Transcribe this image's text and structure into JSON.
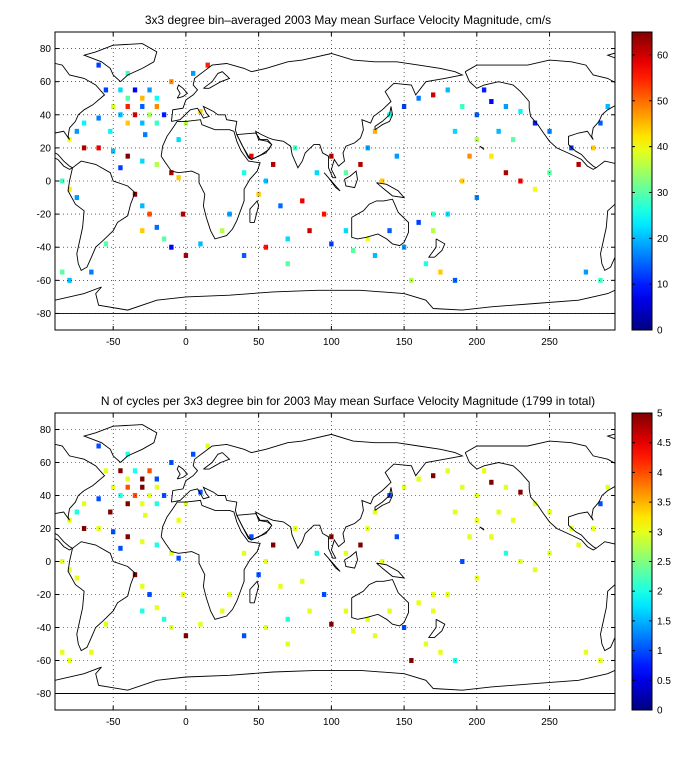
{
  "chart_data": [
    {
      "type": "heatmap",
      "title": "3x3 degree bin–averaged 2003 May mean Surface Velocity Magnitude, cm/s",
      "xlabel": "",
      "ylabel": "",
      "xlim": [
        -90,
        295
      ],
      "ylim": [
        -90,
        90
      ],
      "x_ticks": [
        -50,
        0,
        50,
        100,
        150,
        200,
        250
      ],
      "y_ticks": [
        80,
        60,
        40,
        20,
        0,
        -20,
        -40,
        -60,
        -80
      ],
      "grid": true,
      "colorbar": {
        "min": 0,
        "max": 65,
        "ticks": [
          0,
          10,
          20,
          30,
          40,
          50,
          60
        ]
      },
      "bin_size_deg": 3,
      "cells": [
        [
          -55,
          55,
          12
        ],
        [
          -45,
          55,
          22
        ],
        [
          -35,
          55,
          8
        ],
        [
          -25,
          55,
          18
        ],
        [
          -40,
          50,
          30
        ],
        [
          -30,
          50,
          45
        ],
        [
          -20,
          50,
          25
        ],
        [
          -50,
          45,
          38
        ],
        [
          -40,
          45,
          55
        ],
        [
          -30,
          45,
          14
        ],
        [
          -20,
          45,
          48
        ],
        [
          -45,
          40,
          20
        ],
        [
          -35,
          40,
          60
        ],
        [
          -25,
          40,
          35
        ],
        [
          -15,
          40,
          10
        ],
        [
          -40,
          35,
          44
        ],
        [
          -30,
          35,
          20
        ],
        [
          -20,
          35,
          28
        ],
        [
          -60,
          38,
          16
        ],
        [
          -70,
          35,
          24
        ],
        [
          -75,
          30,
          18
        ],
        [
          -80,
          25,
          40
        ],
        [
          -70,
          20,
          62
        ],
        [
          -60,
          20,
          58
        ],
        [
          -50,
          18,
          20
        ],
        [
          -40,
          15,
          65
        ],
        [
          -30,
          12,
          22
        ],
        [
          -20,
          10,
          36
        ],
        [
          -10,
          5,
          62
        ],
        [
          -5,
          2,
          44
        ],
        [
          -85,
          0,
          28
        ],
        [
          -80,
          -5,
          42
        ],
        [
          -75,
          -10,
          18
        ],
        [
          -35,
          -8,
          64
        ],
        [
          -30,
          -15,
          20
        ],
        [
          -25,
          -20,
          52
        ],
        [
          -20,
          -28,
          15
        ],
        [
          -15,
          -35,
          30
        ],
        [
          -10,
          -40,
          8
        ],
        [
          0,
          -45,
          62
        ],
        [
          10,
          -38,
          20
        ],
        [
          25,
          -30,
          36
        ],
        [
          40,
          -45,
          14
        ],
        [
          55,
          -40,
          56
        ],
        [
          70,
          -35,
          22
        ],
        [
          85,
          -30,
          60
        ],
        [
          100,
          -38,
          12
        ],
        [
          115,
          -42,
          30
        ],
        [
          130,
          -45,
          20
        ],
        [
          150,
          -40,
          18
        ],
        [
          165,
          -50,
          26
        ],
        [
          175,
          -55,
          44
        ],
        [
          185,
          -60,
          14
        ],
        [
          -85,
          -55,
          30
        ],
        [
          -80,
          -60,
          20
        ],
        [
          -65,
          -55,
          16
        ],
        [
          60,
          10,
          62
        ],
        [
          55,
          0,
          20
        ],
        [
          50,
          -8,
          44
        ],
        [
          65,
          -15,
          15
        ],
        [
          80,
          -12,
          58
        ],
        [
          90,
          5,
          22
        ],
        [
          110,
          5,
          30
        ],
        [
          120,
          10,
          62
        ],
        [
          125,
          20,
          18
        ],
        [
          130,
          30,
          46
        ],
        [
          140,
          40,
          26
        ],
        [
          150,
          45,
          12
        ],
        [
          160,
          50,
          16
        ],
        [
          170,
          52,
          60
        ],
        [
          180,
          55,
          20
        ],
        [
          190,
          45,
          28
        ],
        [
          200,
          40,
          14
        ],
        [
          210,
          48,
          8
        ],
        [
          220,
          45,
          18
        ],
        [
          230,
          42,
          24
        ],
        [
          240,
          35,
          10
        ],
        [
          200,
          25,
          36
        ],
        [
          210,
          15,
          42
        ],
        [
          220,
          5,
          62
        ],
        [
          230,
          0,
          58
        ],
        [
          240,
          -5,
          40
        ],
        [
          250,
          5,
          30
        ],
        [
          200,
          -10,
          16
        ],
        [
          190,
          0,
          44
        ],
        [
          180,
          -20,
          22
        ],
        [
          170,
          -30,
          36
        ],
        [
          160,
          -25,
          12
        ],
        [
          270,
          10,
          62
        ],
        [
          280,
          20,
          44
        ],
        [
          285,
          35,
          14
        ],
        [
          290,
          45,
          20
        ],
        [
          275,
          -55,
          18
        ],
        [
          285,
          -60,
          28
        ],
        [
          -10,
          60,
          48
        ],
        [
          0,
          35,
          36
        ],
        [
          10,
          42,
          44
        ],
        [
          -5,
          25,
          22
        ],
        [
          5,
          65,
          18
        ],
        [
          15,
          70,
          55
        ],
        [
          -60,
          70,
          12
        ],
        [
          -40,
          65,
          28
        ],
        [
          -28,
          28,
          16
        ],
        [
          -52,
          30,
          24
        ],
        [
          -45,
          8,
          12
        ],
        [
          -55,
          -38,
          30
        ],
        [
          -30,
          -30,
          44
        ],
        [
          -2,
          -20,
          62
        ],
        [
          30,
          -20,
          18
        ],
        [
          70,
          -50,
          30
        ],
        [
          95,
          -20,
          56
        ],
        [
          110,
          -30,
          22
        ],
        [
          125,
          -35,
          40
        ],
        [
          140,
          -30,
          14
        ],
        [
          155,
          -60,
          36
        ],
        [
          170,
          -20,
          28
        ],
        [
          250,
          30,
          16
        ],
        [
          265,
          20,
          12
        ],
        [
          215,
          30,
          20
        ],
        [
          205,
          55,
          10
        ],
        [
          225,
          25,
          30
        ],
        [
          195,
          15,
          48
        ],
        [
          185,
          30,
          22
        ],
        [
          145,
          15,
          18
        ],
        [
          135,
          0,
          44
        ],
        [
          100,
          15,
          62
        ],
        [
          75,
          20,
          28
        ],
        [
          45,
          15,
          58
        ],
        [
          40,
          5,
          26
        ]
      ]
    },
    {
      "type": "heatmap",
      "title": "N of cycles per 3x3 degree bin for 2003 May mean Surface Velocity Magnitude (1799 in total)",
      "xlabel": "",
      "ylabel": "",
      "xlim": [
        -90,
        295
      ],
      "ylim": [
        -90,
        90
      ],
      "x_ticks": [
        -50,
        0,
        50,
        100,
        150,
        200,
        250
      ],
      "y_ticks": [
        80,
        60,
        40,
        20,
        0,
        -20,
        -40,
        -60,
        -80
      ],
      "grid": true,
      "colorbar": {
        "min": 0,
        "max": 5,
        "ticks": [
          0,
          0.5,
          1,
          1.5,
          2,
          2.5,
          3,
          3.5,
          4,
          4.5,
          5
        ]
      },
      "bin_size_deg": 3,
      "cells": [
        [
          -55,
          55,
          3
        ],
        [
          -45,
          55,
          5
        ],
        [
          -35,
          55,
          2
        ],
        [
          -25,
          55,
          4
        ],
        [
          -40,
          50,
          3
        ],
        [
          -30,
          50,
          5
        ],
        [
          -20,
          50,
          1
        ],
        [
          -50,
          45,
          3
        ],
        [
          -40,
          45,
          4
        ],
        [
          -30,
          45,
          5
        ],
        [
          -20,
          45,
          3
        ],
        [
          -45,
          40,
          2
        ],
        [
          -35,
          40,
          4
        ],
        [
          -25,
          40,
          3
        ],
        [
          -15,
          40,
          1
        ],
        [
          -40,
          35,
          5
        ],
        [
          -30,
          35,
          3
        ],
        [
          -20,
          35,
          2
        ],
        [
          -60,
          38,
          1
        ],
        [
          -70,
          35,
          3
        ],
        [
          -75,
          30,
          2
        ],
        [
          -80,
          25,
          3
        ],
        [
          -70,
          20,
          5
        ],
        [
          -60,
          20,
          3
        ],
        [
          -50,
          18,
          1
        ],
        [
          -40,
          15,
          5
        ],
        [
          -30,
          12,
          3
        ],
        [
          -20,
          10,
          2
        ],
        [
          -10,
          5,
          3
        ],
        [
          -5,
          2,
          1
        ],
        [
          -85,
          0,
          3
        ],
        [
          -80,
          -5,
          3
        ],
        [
          -75,
          -10,
          3
        ],
        [
          -35,
          -8,
          5
        ],
        [
          -30,
          -15,
          3
        ],
        [
          -25,
          -20,
          1
        ],
        [
          -20,
          -28,
          3
        ],
        [
          -15,
          -35,
          2
        ],
        [
          -10,
          -40,
          3
        ],
        [
          0,
          -45,
          5
        ],
        [
          10,
          -38,
          3
        ],
        [
          25,
          -30,
          3
        ],
        [
          40,
          -45,
          1
        ],
        [
          55,
          -40,
          3
        ],
        [
          70,
          -35,
          2
        ],
        [
          85,
          -30,
          3
        ],
        [
          100,
          -38,
          5
        ],
        [
          115,
          -42,
          3
        ],
        [
          130,
          -45,
          3
        ],
        [
          150,
          -40,
          1
        ],
        [
          165,
          -50,
          3
        ],
        [
          175,
          -55,
          3
        ],
        [
          185,
          -60,
          2
        ],
        [
          -85,
          -55,
          3
        ],
        [
          -80,
          -60,
          3
        ],
        [
          -65,
          -55,
          3
        ],
        [
          60,
          10,
          5
        ],
        [
          55,
          0,
          3
        ],
        [
          50,
          -8,
          1
        ],
        [
          65,
          -15,
          3
        ],
        [
          80,
          -12,
          3
        ],
        [
          90,
          5,
          2
        ],
        [
          110,
          5,
          3
        ],
        [
          120,
          10,
          5
        ],
        [
          125,
          20,
          3
        ],
        [
          130,
          30,
          3
        ],
        [
          140,
          40,
          1
        ],
        [
          150,
          45,
          3
        ],
        [
          160,
          50,
          3
        ],
        [
          170,
          52,
          5
        ],
        [
          180,
          55,
          3
        ],
        [
          190,
          45,
          3
        ],
        [
          200,
          40,
          3
        ],
        [
          210,
          48,
          5
        ],
        [
          220,
          45,
          3
        ],
        [
          230,
          42,
          5
        ],
        [
          240,
          35,
          3
        ],
        [
          200,
          25,
          3
        ],
        [
          210,
          15,
          3
        ],
        [
          220,
          5,
          2
        ],
        [
          230,
          0,
          3
        ],
        [
          240,
          -5,
          3
        ],
        [
          250,
          5,
          3
        ],
        [
          200,
          -10,
          3
        ],
        [
          190,
          0,
          1
        ],
        [
          180,
          -20,
          3
        ],
        [
          170,
          -30,
          3
        ],
        [
          160,
          -25,
          3
        ],
        [
          270,
          10,
          3
        ],
        [
          280,
          20,
          3
        ],
        [
          285,
          35,
          1
        ],
        [
          290,
          45,
          3
        ],
        [
          275,
          -55,
          3
        ],
        [
          285,
          -60,
          3
        ],
        [
          -10,
          60,
          1
        ],
        [
          0,
          35,
          3
        ],
        [
          10,
          42,
          1
        ],
        [
          -5,
          25,
          3
        ],
        [
          5,
          65,
          1
        ],
        [
          15,
          70,
          3
        ],
        [
          -60,
          70,
          1
        ],
        [
          -40,
          65,
          2
        ],
        [
          -28,
          28,
          3
        ],
        [
          -52,
          30,
          5
        ],
        [
          -45,
          8,
          1
        ],
        [
          -55,
          -38,
          3
        ],
        [
          -30,
          -30,
          2
        ],
        [
          -2,
          -20,
          3
        ],
        [
          30,
          -20,
          3
        ],
        [
          70,
          -50,
          3
        ],
        [
          95,
          -20,
          1
        ],
        [
          110,
          -30,
          3
        ],
        [
          125,
          -35,
          3
        ],
        [
          140,
          -30,
          3
        ],
        [
          155,
          -60,
          5
        ],
        [
          170,
          -20,
          3
        ],
        [
          250,
          30,
          3
        ],
        [
          265,
          20,
          3
        ],
        [
          215,
          30,
          3
        ],
        [
          205,
          55,
          3
        ],
        [
          225,
          25,
          3
        ],
        [
          195,
          15,
          3
        ],
        [
          185,
          30,
          3
        ],
        [
          145,
          15,
          1
        ],
        [
          135,
          0,
          3
        ],
        [
          100,
          15,
          5
        ],
        [
          75,
          20,
          3
        ],
        [
          45,
          15,
          1
        ],
        [
          40,
          5,
          3
        ]
      ]
    }
  ]
}
